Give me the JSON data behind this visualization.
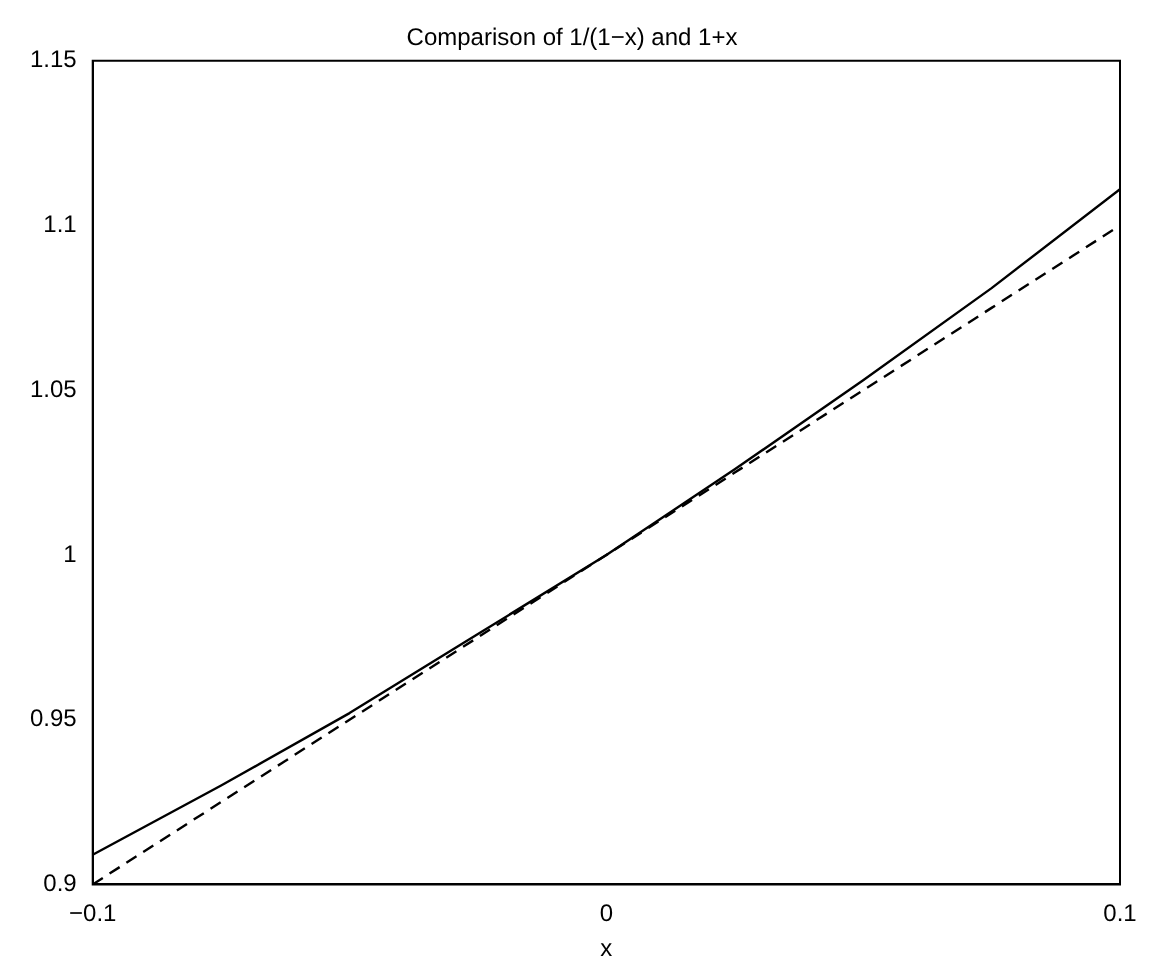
{
  "chart_data": {
    "type": "line",
    "title": "Comparison of 1/(1−x) and 1+x",
    "xlabel": "x",
    "x": [
      -0.1,
      -0.075,
      -0.05,
      -0.025,
      0,
      0.025,
      0.05,
      0.075,
      0.1
    ],
    "series": [
      {
        "color": "#000000",
        "line_style": "solid",
        "values": [
          0.909,
          0.93,
          0.952,
          0.976,
          1,
          1.026,
          1.053,
          1.081,
          1.111
        ]
      },
      {
        "color": "#000000",
        "line_style": "dashed",
        "values": [
          0.9,
          0.925,
          0.95,
          0.975,
          1,
          1.025,
          1.05,
          1.075,
          1.1
        ]
      }
    ],
    "xlim": [
      -0.1,
      0.1
    ],
    "xticks": [
      {
        "value": -0.1,
        "label": "−0.1"
      },
      0,
      0.1
    ],
    "ylim": [
      0.9,
      1.15
    ],
    "yticks": [
      0.9,
      0.95,
      1,
      1.05,
      1.1,
      1.15
    ],
    "grid": false,
    "legend": false,
    "marker": "none"
  }
}
